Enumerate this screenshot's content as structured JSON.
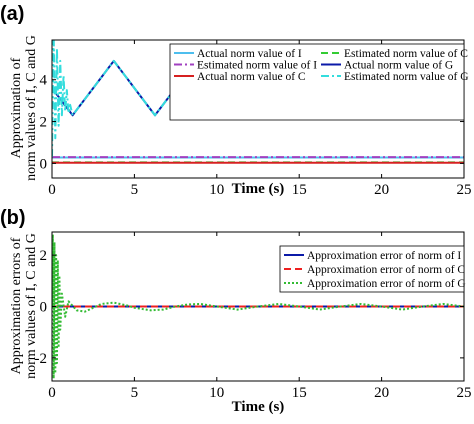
{
  "chart_data": [
    {
      "panel_label": "(a)",
      "type": "line",
      "ylabel": "Approximation of norm values of I, C and G",
      "xlabel": "Time (s)",
      "xlim": [
        0,
        25
      ],
      "ylim": [
        -0.7,
        5.9
      ],
      "xticks": [
        0,
        5,
        10,
        15,
        20,
        25
      ],
      "xtick_labels": [
        "0",
        "5",
        "10",
        "15",
        "20",
        "25"
      ],
      "yticks": [
        0,
        2,
        4
      ],
      "ytick_labels": [
        "0",
        "2",
        "4"
      ],
      "grid": false,
      "legend_position": "top-right",
      "legend_entries": [
        "Actual norm value of I",
        "Estimated norm value of C",
        "Estimated norm value of I",
        "Actual norm value of G",
        "Actual norm value of C",
        "Estimated norm value of G"
      ],
      "series_colors": [
        "#4dbeee",
        "#33cc33",
        "#a040c0",
        "#0b1aa8",
        "#d62020",
        "#33dddd"
      ],
      "series_styles": [
        "solid",
        "dashed",
        "dashdot",
        "solid",
        "solid",
        "dashdot"
      ],
      "series": [
        {
          "name": "Actual norm value of I",
          "x": [
            0,
            5,
            10,
            15,
            20,
            25
          ],
          "y": [
            0.28,
            0.28,
            0.28,
            0.28,
            0.28,
            0.28
          ]
        },
        {
          "name": "Estimated norm value of C",
          "x": [
            0,
            5,
            10,
            15,
            20,
            25
          ],
          "y": [
            0.05,
            0.05,
            0.05,
            0.05,
            0.05,
            0.05
          ]
        },
        {
          "name": "Estimated norm value of I",
          "x": [
            0,
            5,
            10,
            15,
            20,
            25
          ],
          "y": [
            0.3,
            0.3,
            0.3,
            0.3,
            0.3,
            0.3
          ]
        },
        {
          "name": "Actual norm value of G",
          "x": [
            0,
            1.25,
            2.5,
            3.75,
            5,
            6.25,
            7.5,
            8.75,
            10,
            11.25,
            12.5,
            13.75,
            15,
            16.25,
            17.5,
            18.75,
            20,
            21.25,
            22.5,
            23.75,
            25
          ],
          "y": [
            3.6,
            2.3,
            3.6,
            4.9,
            3.6,
            2.3,
            3.6,
            4.9,
            3.6,
            2.3,
            3.6,
            4.9,
            3.6,
            2.3,
            3.6,
            4.9,
            3.6,
            2.3,
            3.6,
            4.9,
            3.6
          ]
        },
        {
          "name": "Actual norm value of C",
          "x": [
            0,
            5,
            10,
            15,
            20,
            25
          ],
          "y": [
            0.03,
            0.03,
            0.03,
            0.03,
            0.03,
            0.03
          ]
        },
        {
          "name": "Estimated norm value of G",
          "x": [
            0,
            0.1,
            0.2,
            0.3,
            0.4,
            0.5,
            0.6,
            0.7,
            0.8,
            0.9,
            1.0,
            1.1,
            1.25,
            2.5,
            3.75,
            5,
            6.25,
            7.5,
            8.75,
            10,
            11.25,
            12.5,
            13.75,
            15,
            16.25,
            17.5,
            18.75,
            20,
            21.25,
            22.5,
            23.75,
            25
          ],
          "y": [
            0.3,
            6.2,
            1.2,
            5.5,
            1.8,
            4.9,
            2.3,
            4.2,
            2.5,
            3.5,
            2.4,
            2.8,
            2.3,
            3.6,
            4.9,
            3.6,
            2.3,
            3.6,
            4.9,
            3.6,
            2.3,
            3.6,
            4.9,
            3.6,
            2.3,
            3.6,
            4.9,
            3.6,
            2.3,
            3.6,
            4.9,
            3.6
          ]
        }
      ]
    },
    {
      "panel_label": "(b)",
      "type": "line",
      "ylabel": "Approximation errors of norm values of I, C and G",
      "xlabel": "Time (s)",
      "xlim": [
        0,
        25
      ],
      "ylim": [
        -2.9,
        2.9
      ],
      "xticks": [
        0,
        5,
        10,
        15,
        20,
        25
      ],
      "xtick_labels": [
        "0",
        "5",
        "10",
        "15",
        "20",
        "25"
      ],
      "yticks": [
        -2,
        0,
        2
      ],
      "ytick_labels": [
        "-2",
        "0",
        "2"
      ],
      "grid": false,
      "legend_position": "top-right",
      "legend_entries": [
        "Approximation error of norm of I",
        "Approximation error of norm of C",
        "Approximation error of norm of G"
      ],
      "series_colors": [
        "#0b1aa8",
        "#ee2020",
        "#33bb33"
      ],
      "series_styles": [
        "solid",
        "dashed",
        "dotted"
      ],
      "series": [
        {
          "name": "Approximation error of norm of I",
          "x": [
            0,
            5,
            10,
            15,
            20,
            25
          ],
          "y": [
            0,
            0,
            0,
            0,
            0,
            0
          ]
        },
        {
          "name": "Approximation error of norm of C",
          "x": [
            0,
            5,
            10,
            15,
            20,
            25
          ],
          "y": [
            0,
            0,
            0,
            0,
            0,
            0
          ]
        },
        {
          "name": "Approximation error of norm of G",
          "x": [
            0,
            0.05,
            0.1,
            0.15,
            0.2,
            0.25,
            0.3,
            0.35,
            0.4,
            0.45,
            0.5,
            0.6,
            0.8,
            1.0,
            1.5,
            2.0,
            2.5,
            3.0,
            3.75,
            4.5,
            5.0,
            6.0,
            6.75,
            7.5,
            8.25,
            9.0,
            10,
            11.25,
            12.5,
            13.75,
            15,
            16.25,
            17.5,
            18.75,
            20,
            21.25,
            22.5,
            23.75,
            25
          ],
          "y": [
            0,
            2.8,
            -2.8,
            2.5,
            -2.6,
            2.0,
            -2.2,
            1.8,
            -1.6,
            1.2,
            -0.9,
            0.5,
            -0.4,
            0.2,
            -0.15,
            -0.2,
            -0.05,
            0.1,
            0.15,
            0.05,
            -0.05,
            -0.15,
            -0.12,
            0,
            0.08,
            0.1,
            0,
            -0.12,
            0,
            0.1,
            0,
            -0.12,
            0,
            0.1,
            0,
            -0.12,
            0,
            0.1,
            0
          ]
        }
      ]
    }
  ]
}
